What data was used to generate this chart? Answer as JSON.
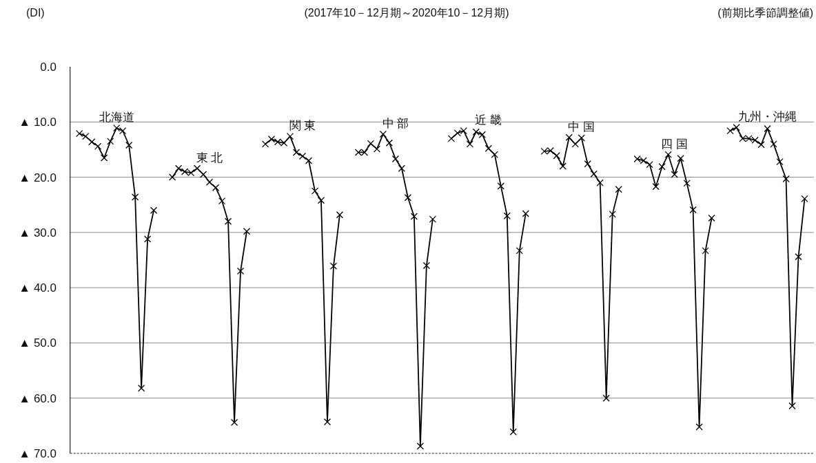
{
  "chart_data": {
    "type": "line",
    "ylabel": "(DI)",
    "annotations": [
      "(2017年10－12月期～2020年10－12月期)",
      "(前期比季節調整値)"
    ],
    "categories": [
      null,
      null,
      null,
      null,
      null,
      null,
      null,
      null,
      null,
      null,
      null,
      null,
      null,
      null,
      null,
      null,
      null,
      null,
      null,
      null,
      null,
      null,
      null,
      null,
      null,
      null,
      null,
      null,
      null,
      null,
      null,
      null,
      null,
      null,
      null,
      null,
      null,
      null,
      null,
      null,
      null,
      null,
      null,
      null,
      null,
      null,
      null,
      null,
      null,
      null,
      null,
      null,
      null,
      null,
      null,
      null,
      null,
      null,
      null,
      null,
      null,
      null,
      null,
      null,
      null,
      null,
      null,
      null,
      null,
      null,
      null,
      null,
      null,
      null,
      null,
      null,
      null,
      null,
      null,
      null,
      null,
      null,
      null,
      null,
      null,
      null,
      null,
      null,
      null,
      null,
      null,
      null,
      null,
      null,
      null,
      null,
      null,
      null,
      null,
      null,
      null,
      null,
      null,
      null,
      null,
      null,
      null,
      null,
      null,
      null,
      null,
      null,
      null,
      null,
      null,
      null,
      null,
      null,
      null,
      null
    ],
    "marker": "cross",
    "line_style": "solid",
    "grid": "y",
    "ylim": [
      -70,
      0
    ],
    "yticks": [
      {
        "value": 0,
        "label": "0.0"
      },
      {
        "value": -10,
        "label": "▲ 10.0"
      },
      {
        "value": -20,
        "label": "▲ 20.0"
      },
      {
        "value": -30,
        "label": "▲ 30.0"
      },
      {
        "value": -40,
        "label": "▲ 40.0"
      },
      {
        "value": -50,
        "label": "▲ 50.0"
      },
      {
        "value": -60,
        "label": "▲ 60.0"
      },
      {
        "value": -70,
        "label": "▲ 70.0"
      }
    ],
    "series": [
      {
        "name": "北海道",
        "color": "#000000",
        "values": [
          null,
          -12.1,
          -12.6,
          -13.6,
          -14.4,
          -16.5,
          -13.5,
          -11.1,
          -11.6,
          -14.2,
          -23.6,
          -58.2,
          -31.2,
          -26.0,
          null,
          null,
          null,
          null,
          null,
          null,
          null,
          null,
          null,
          null,
          null,
          null,
          null,
          null,
          null,
          null,
          null,
          null,
          null,
          null,
          null,
          null,
          null,
          null,
          null,
          null,
          null,
          null,
          null,
          null,
          null,
          null,
          null,
          null,
          null,
          null,
          null,
          null,
          null,
          null,
          null,
          null,
          null,
          null,
          null,
          null,
          null,
          null,
          null,
          null,
          null,
          null,
          null,
          null,
          null,
          null,
          null,
          null,
          null,
          null,
          null,
          null,
          null,
          null,
          null,
          null,
          null,
          null,
          null,
          null,
          null,
          null,
          null,
          null,
          null,
          null,
          null,
          null,
          null,
          null,
          null,
          null,
          null,
          null,
          null,
          null,
          null,
          null,
          null,
          null,
          null,
          null,
          null,
          null,
          null,
          null,
          null,
          null,
          null,
          null,
          null,
          null,
          null,
          null,
          null,
          null
        ]
      },
      {
        "name": "東 北",
        "color": "#000000",
        "values": [
          null,
          null,
          null,
          null,
          null,
          null,
          null,
          null,
          null,
          null,
          null,
          null,
          null,
          null,
          null,
          null,
          -20.0,
          -18.4,
          -19.0,
          -19.2,
          -18.4,
          -19.5,
          -20.9,
          -21.9,
          -24.3,
          -28.0,
          -64.4,
          -37.0,
          -29.8,
          null,
          null,
          null,
          null,
          null,
          null,
          null,
          null,
          null,
          null,
          null,
          null,
          null,
          null,
          null,
          null,
          null,
          null,
          null,
          null,
          null,
          null,
          null,
          null,
          null,
          null,
          null,
          null,
          null,
          null,
          null,
          null,
          null,
          null,
          null,
          null,
          null,
          null,
          null,
          null,
          null,
          null,
          null,
          null,
          null,
          null,
          null,
          null,
          null,
          null,
          null,
          null,
          null,
          null,
          null,
          null,
          null,
          null,
          null,
          null,
          null,
          null,
          null,
          null,
          null,
          null,
          null,
          null,
          null,
          null,
          null,
          null,
          null,
          null,
          null,
          null,
          null,
          null,
          null,
          null,
          null,
          null,
          null,
          null,
          null,
          null,
          null,
          null,
          null,
          null,
          null
        ]
      },
      {
        "name": "関 東",
        "color": "#000000",
        "values": [
          null,
          null,
          null,
          null,
          null,
          null,
          null,
          null,
          null,
          null,
          null,
          null,
          null,
          null,
          null,
          null,
          null,
          null,
          null,
          null,
          null,
          null,
          null,
          null,
          null,
          null,
          null,
          null,
          null,
          null,
          null,
          -14.0,
          -13.1,
          -13.6,
          -13.8,
          -12.6,
          -15.5,
          -16.2,
          -17.0,
          -22.5,
          -24.2,
          -64.3,
          -36.1,
          -26.8,
          null,
          null,
          null,
          null,
          null,
          null,
          null,
          null,
          null,
          null,
          null,
          null,
          null,
          null,
          null,
          null,
          null,
          null,
          null,
          null,
          null,
          null,
          null,
          null,
          null,
          null,
          null,
          null,
          null,
          null,
          null,
          null,
          null,
          null,
          null,
          null,
          null,
          null,
          null,
          null,
          null,
          null,
          null,
          null,
          null,
          null,
          null,
          null,
          null,
          null,
          null,
          null,
          null,
          null,
          null,
          null,
          null,
          null,
          null,
          null,
          null,
          null,
          null,
          null,
          null,
          null,
          null,
          null,
          null,
          null,
          null,
          null,
          null,
          null,
          null,
          null
        ]
      },
      {
        "name": "中 部",
        "color": "#000000",
        "values": [
          null,
          null,
          null,
          null,
          null,
          null,
          null,
          null,
          null,
          null,
          null,
          null,
          null,
          null,
          null,
          null,
          null,
          null,
          null,
          null,
          null,
          null,
          null,
          null,
          null,
          null,
          null,
          null,
          null,
          null,
          null,
          null,
          null,
          null,
          null,
          null,
          null,
          null,
          null,
          null,
          null,
          null,
          null,
          null,
          null,
          null,
          -15.5,
          -15.5,
          -13.9,
          -14.9,
          -12.2,
          -13.8,
          -16.7,
          -18.4,
          -23.7,
          -27.1,
          -68.7,
          -36.0,
          -27.6,
          null,
          null,
          null,
          null,
          null,
          null,
          null,
          null,
          null,
          null,
          null,
          null,
          null,
          null,
          null,
          null,
          null,
          null,
          null,
          null,
          null,
          null,
          null,
          null,
          null,
          null,
          null,
          null,
          null,
          null,
          null,
          null,
          null,
          null,
          null,
          null,
          null,
          null,
          null,
          null,
          null,
          null,
          null,
          null,
          null,
          null,
          null,
          null,
          null,
          null,
          null,
          null,
          null,
          null,
          null,
          null,
          null,
          null,
          null,
          null,
          null
        ]
      },
      {
        "name": "近 畿",
        "color": "#000000",
        "values": [
          null,
          null,
          null,
          null,
          null,
          null,
          null,
          null,
          null,
          null,
          null,
          null,
          null,
          null,
          null,
          null,
          null,
          null,
          null,
          null,
          null,
          null,
          null,
          null,
          null,
          null,
          null,
          null,
          null,
          null,
          null,
          null,
          null,
          null,
          null,
          null,
          null,
          null,
          null,
          null,
          null,
          null,
          null,
          null,
          null,
          null,
          null,
          null,
          null,
          null,
          null,
          null,
          null,
          null,
          null,
          null,
          null,
          null,
          null,
          null,
          null,
          -13.0,
          -12.0,
          -11.6,
          -14.0,
          -11.8,
          -12.3,
          -14.8,
          -15.9,
          -21.6,
          -27.0,
          -66.1,
          -33.3,
          -26.6,
          null,
          null,
          null,
          null,
          null,
          null,
          null,
          null,
          null,
          null,
          null,
          null,
          null,
          null,
          null,
          null,
          null,
          null,
          null,
          null,
          null,
          null,
          null,
          null,
          null,
          null,
          null,
          null,
          null,
          null,
          null,
          null,
          null,
          null,
          null,
          null,
          null,
          null,
          null,
          null,
          null,
          null,
          null,
          null,
          null,
          null
        ]
      },
      {
        "name": "中 国",
        "color": "#000000",
        "values": [
          null,
          null,
          null,
          null,
          null,
          null,
          null,
          null,
          null,
          null,
          null,
          null,
          null,
          null,
          null,
          null,
          null,
          null,
          null,
          null,
          null,
          null,
          null,
          null,
          null,
          null,
          null,
          null,
          null,
          null,
          null,
          null,
          null,
          null,
          null,
          null,
          null,
          null,
          null,
          null,
          null,
          null,
          null,
          null,
          null,
          null,
          null,
          null,
          null,
          null,
          null,
          null,
          null,
          null,
          null,
          null,
          null,
          null,
          null,
          null,
          null,
          null,
          null,
          null,
          null,
          null,
          null,
          null,
          null,
          null,
          null,
          null,
          null,
          null,
          null,
          null,
          -15.3,
          -15.2,
          -16.1,
          -18.0,
          -12.8,
          -14.0,
          -12.9,
          -17.6,
          -19.4,
          -21.0,
          -60.0,
          -26.7,
          -22.2,
          null,
          null,
          null,
          null,
          null,
          null,
          null,
          null,
          null,
          null,
          null,
          null,
          null,
          null,
          null,
          null,
          null,
          null,
          null,
          null,
          null,
          null,
          null,
          null,
          null,
          null,
          null,
          null,
          null,
          null,
          null
        ]
      },
      {
        "name": "四 国",
        "color": "#000000",
        "values": [
          null,
          null,
          null,
          null,
          null,
          null,
          null,
          null,
          null,
          null,
          null,
          null,
          null,
          null,
          null,
          null,
          null,
          null,
          null,
          null,
          null,
          null,
          null,
          null,
          null,
          null,
          null,
          null,
          null,
          null,
          null,
          null,
          null,
          null,
          null,
          null,
          null,
          null,
          null,
          null,
          null,
          null,
          null,
          null,
          null,
          null,
          null,
          null,
          null,
          null,
          null,
          null,
          null,
          null,
          null,
          null,
          null,
          null,
          null,
          null,
          null,
          null,
          null,
          null,
          null,
          null,
          null,
          null,
          null,
          null,
          null,
          null,
          null,
          null,
          null,
          null,
          null,
          null,
          null,
          null,
          null,
          null,
          null,
          null,
          null,
          null,
          null,
          null,
          null,
          null,
          null,
          -16.7,
          -17.0,
          -17.7,
          -21.7,
          -18.1,
          -15.9,
          -19.5,
          -16.6,
          -21.1,
          -25.9,
          -65.2,
          -33.3,
          -27.4,
          null,
          null,
          null,
          null,
          null,
          null,
          null,
          null,
          null,
          null,
          null,
          null,
          null,
          null,
          null,
          null
        ]
      },
      {
        "name": "九州・沖縄",
        "color": "#000000",
        "values": [
          null,
          null,
          null,
          null,
          null,
          null,
          null,
          null,
          null,
          null,
          null,
          null,
          null,
          null,
          null,
          null,
          null,
          null,
          null,
          null,
          null,
          null,
          null,
          null,
          null,
          null,
          null,
          null,
          null,
          null,
          null,
          null,
          null,
          null,
          null,
          null,
          null,
          null,
          null,
          null,
          null,
          null,
          null,
          null,
          null,
          null,
          null,
          null,
          null,
          null,
          null,
          null,
          null,
          null,
          null,
          null,
          null,
          null,
          null,
          null,
          null,
          null,
          null,
          null,
          null,
          null,
          null,
          null,
          null,
          null,
          null,
          null,
          null,
          null,
          null,
          null,
          null,
          null,
          null,
          null,
          null,
          null,
          null,
          null,
          null,
          null,
          null,
          null,
          null,
          null,
          null,
          null,
          null,
          null,
          null,
          null,
          null,
          null,
          null,
          null,
          null,
          null,
          null,
          null,
          null,
          null,
          -11.6,
          -11.0,
          -13.0,
          -13.0,
          -13.3,
          -14.1,
          -11.2,
          -14.0,
          -17.2,
          -20.3,
          -61.4,
          -34.4,
          -23.9,
          null
        ]
      }
    ]
  }
}
